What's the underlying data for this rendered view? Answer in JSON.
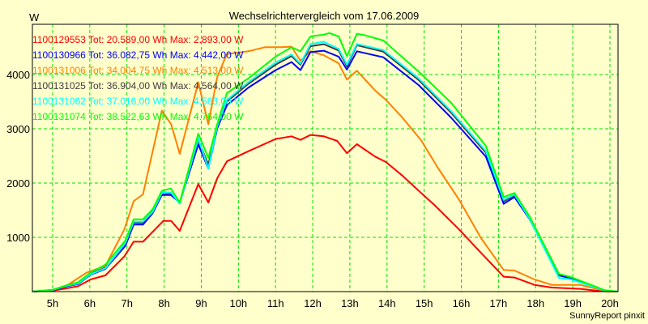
{
  "chart_data": {
    "type": "line",
    "title": "Wechselrichtervergleich vom 17.06.2009",
    "ylabel": "W",
    "xlabel": "",
    "xlim": [
      4.45,
      20.2
    ],
    "ylim": [
      0,
      4925
    ],
    "x_ticks": [
      "5h",
      "6h",
      "7h",
      "8h",
      "9h",
      "10h",
      "11h",
      "12h",
      "13h",
      "14h",
      "15h",
      "16h",
      "17h",
      "18h",
      "19h",
      "20h"
    ],
    "x_tick_values": [
      5,
      6,
      7,
      8,
      9,
      10,
      11,
      12,
      13,
      14,
      15,
      16,
      17,
      18,
      19,
      20
    ],
    "y_ticks": [
      1000,
      2000,
      3000,
      4000
    ],
    "grid": true,
    "legend_placement": "top-left",
    "credit": "SunnyReport pinxit",
    "series": [
      {
        "name": "1100129553",
        "legend": "1100129553 Tot: 20.589,00 Wh Max: 2.893,00 W",
        "color": "#ff0000",
        "points": [
          [
            4.45,
            0
          ],
          [
            5,
            20
          ],
          [
            5.3,
            50
          ],
          [
            5.69,
            100
          ],
          [
            6.02,
            224
          ],
          [
            6.42,
            299
          ],
          [
            6.93,
            647
          ],
          [
            7.18,
            920
          ],
          [
            7.43,
            920
          ],
          [
            7.98,
            1303
          ],
          [
            8.19,
            1303
          ],
          [
            8.42,
            1119
          ],
          [
            8.92,
            1980
          ],
          [
            9.19,
            1642
          ],
          [
            9.43,
            2090
          ],
          [
            9.69,
            2400
          ],
          [
            10.27,
            2587
          ],
          [
            11,
            2811
          ],
          [
            11.43,
            2861
          ],
          [
            11.67,
            2796
          ],
          [
            11.94,
            2886
          ],
          [
            12.3,
            2861
          ],
          [
            12.66,
            2776
          ],
          [
            12.92,
            2550
          ],
          [
            13.19,
            2716
          ],
          [
            13.68,
            2488
          ],
          [
            13.97,
            2388
          ],
          [
            14.41,
            2139
          ],
          [
            14.92,
            1816
          ],
          [
            15.28,
            1592
          ],
          [
            15.94,
            1144
          ],
          [
            16.52,
            721
          ],
          [
            17.14,
            274
          ],
          [
            17.43,
            259
          ],
          [
            17.97,
            124
          ],
          [
            18.44,
            75
          ],
          [
            19.2,
            50
          ],
          [
            19.71,
            10
          ],
          [
            20,
            0
          ],
          [
            20.2,
            0
          ]
        ]
      },
      {
        "name": "1100131006",
        "legend": "1100131006 Tot: 34.004,75 Wh Max: 4.513,00 W",
        "color": "#ff8000",
        "points": [
          [
            4.45,
            0
          ],
          [
            4.7,
            10
          ],
          [
            5,
            30
          ],
          [
            5.4,
            120
          ],
          [
            5.91,
            348
          ],
          [
            6.42,
            473
          ],
          [
            6.93,
            1144
          ],
          [
            7.18,
            1667
          ],
          [
            7.43,
            1791
          ],
          [
            7.94,
            3333
          ],
          [
            8.19,
            3085
          ],
          [
            8.42,
            2537
          ],
          [
            8.92,
            3856
          ],
          [
            9.19,
            3085
          ],
          [
            9.43,
            3955
          ],
          [
            9.69,
            4378
          ],
          [
            10.27,
            4428
          ],
          [
            10.71,
            4503
          ],
          [
            11.14,
            4503
          ],
          [
            11.43,
            4513
          ],
          [
            11.67,
            4254
          ],
          [
            11.94,
            4428
          ],
          [
            12.3,
            4353
          ],
          [
            12.7,
            4204
          ],
          [
            12.92,
            3905
          ],
          [
            13.19,
            4070
          ],
          [
            13.68,
            3706
          ],
          [
            13.97,
            3532
          ],
          [
            14.41,
            3209
          ],
          [
            14.92,
            2786
          ],
          [
            15.36,
            2289
          ],
          [
            15.94,
            1692
          ],
          [
            16.52,
            995
          ],
          [
            17.14,
            398
          ],
          [
            17.43,
            388
          ],
          [
            17.97,
            224
          ],
          [
            18.44,
            124
          ],
          [
            19.2,
            124
          ],
          [
            19.64,
            50
          ],
          [
            20,
            0
          ],
          [
            20.2,
            0
          ]
        ]
      },
      {
        "name": "1100131025",
        "legend": "1100131025 Tot: 36.904,00 Wh Max: 4.564,00 W",
        "color": "#403840",
        "points": [
          [
            4.45,
            0
          ],
          [
            5,
            30
          ],
          [
            5.4,
            110
          ],
          [
            5.69,
            150
          ],
          [
            6.02,
            330
          ],
          [
            6.42,
            440
          ],
          [
            6.96,
            880
          ],
          [
            7.18,
            1270
          ],
          [
            7.43,
            1270
          ],
          [
            7.69,
            1480
          ],
          [
            7.94,
            1810
          ],
          [
            8.18,
            1810
          ],
          [
            8.42,
            1630
          ],
          [
            8.92,
            2790
          ],
          [
            9.19,
            2340
          ],
          [
            9.43,
            3040
          ],
          [
            9.69,
            3500
          ],
          [
            10.27,
            3830
          ],
          [
            11,
            4180
          ],
          [
            11.43,
            4340
          ],
          [
            11.67,
            4180
          ],
          [
            11.94,
            4520
          ],
          [
            12.3,
            4560
          ],
          [
            12.7,
            4440
          ],
          [
            12.92,
            4150
          ],
          [
            13.19,
            4540
          ],
          [
            13.9,
            4420
          ],
          [
            14.85,
            3900
          ],
          [
            15.72,
            3300
          ],
          [
            16.66,
            2560
          ],
          [
            17.14,
            1660
          ],
          [
            17.43,
            1770
          ],
          [
            17.83,
            1370
          ],
          [
            18.63,
            310
          ],
          [
            18.92,
            260
          ],
          [
            19.86,
            20
          ],
          [
            20.2,
            0
          ]
        ]
      },
      {
        "name": "1100130966",
        "legend": "1100130966 Tot: 36.082,75 Wh Max: 4.442,00 W",
        "color": "#0000ff",
        "points": [
          [
            4.45,
            0
          ],
          [
            5,
            25
          ],
          [
            5.4,
            100
          ],
          [
            5.69,
            140
          ],
          [
            6.02,
            310
          ],
          [
            6.42,
            420
          ],
          [
            6.96,
            846
          ],
          [
            7.18,
            1234
          ],
          [
            7.43,
            1234
          ],
          [
            7.69,
            1443
          ],
          [
            7.94,
            1781
          ],
          [
            8.18,
            1781
          ],
          [
            8.42,
            1642
          ],
          [
            8.92,
            2712
          ],
          [
            9.19,
            2264
          ],
          [
            9.43,
            3010
          ],
          [
            9.69,
            3433
          ],
          [
            10.27,
            3760
          ],
          [
            11,
            4080
          ],
          [
            11.43,
            4229
          ],
          [
            11.67,
            4080
          ],
          [
            11.94,
            4413
          ],
          [
            12.3,
            4438
          ],
          [
            12.7,
            4328
          ],
          [
            12.92,
            4090
          ],
          [
            13.19,
            4428
          ],
          [
            13.9,
            4318
          ],
          [
            14.85,
            3806
          ],
          [
            15.72,
            3209
          ],
          [
            16.66,
            2488
          ],
          [
            17.14,
            1617
          ],
          [
            17.43,
            1741
          ],
          [
            17.83,
            1343
          ],
          [
            18.63,
            299
          ],
          [
            18.92,
            249
          ],
          [
            19.86,
            20
          ],
          [
            20.2,
            0
          ]
        ]
      },
      {
        "name": "1100131062",
        "legend": "1100131062 Tot: 37.016,00 Wh Max: 4.563,00 W",
        "color": "#00ffff",
        "points": [
          [
            4.45,
            0
          ],
          [
            5,
            30
          ],
          [
            5.4,
            110
          ],
          [
            5.69,
            150
          ],
          [
            6.02,
            320
          ],
          [
            6.42,
            430
          ],
          [
            6.96,
            900
          ],
          [
            7.18,
            1290
          ],
          [
            7.43,
            1290
          ],
          [
            7.69,
            1470
          ],
          [
            7.94,
            1820
          ],
          [
            8.18,
            1830
          ],
          [
            8.42,
            1620
          ],
          [
            8.92,
            2820
          ],
          [
            9.19,
            2264
          ],
          [
            9.43,
            3050
          ],
          [
            9.69,
            3530
          ],
          [
            10.27,
            3860
          ],
          [
            11,
            4220
          ],
          [
            11.43,
            4370
          ],
          [
            11.67,
            4200
          ],
          [
            11.94,
            4560
          ],
          [
            12.3,
            4604
          ],
          [
            12.7,
            4470
          ],
          [
            12.92,
            4180
          ],
          [
            13.19,
            4563
          ],
          [
            13.9,
            4450
          ],
          [
            14.85,
            3930
          ],
          [
            15.72,
            3330
          ],
          [
            16.66,
            2590
          ],
          [
            17.14,
            1690
          ],
          [
            17.43,
            1790
          ],
          [
            17.83,
            1350
          ],
          [
            18.63,
            250
          ],
          [
            18.92,
            230
          ],
          [
            19.86,
            20
          ],
          [
            20.2,
            0
          ]
        ]
      },
      {
        "name": "1100131074",
        "legend": "1100131074 Tot: 38.522,63 Wh Max: 4.764,00 W",
        "color": "#00ff00",
        "points": [
          [
            4.45,
            0
          ],
          [
            5,
            35
          ],
          [
            5.4,
            120
          ],
          [
            5.69,
            175
          ],
          [
            6.02,
            350
          ],
          [
            6.42,
            497
          ],
          [
            6.96,
            945
          ],
          [
            7.18,
            1333
          ],
          [
            7.43,
            1333
          ],
          [
            7.69,
            1517
          ],
          [
            7.94,
            1855
          ],
          [
            8.18,
            1900
          ],
          [
            8.42,
            1642
          ],
          [
            8.92,
            2910
          ],
          [
            9.19,
            2463
          ],
          [
            9.43,
            3085
          ],
          [
            9.69,
            3657
          ],
          [
            10.27,
            3930
          ],
          [
            11,
            4328
          ],
          [
            11.43,
            4503
          ],
          [
            11.67,
            4428
          ],
          [
            11.94,
            4701
          ],
          [
            12.3,
            4736
          ],
          [
            12.45,
            4764
          ],
          [
            12.7,
            4701
          ],
          [
            12.92,
            4338
          ],
          [
            13.19,
            4751
          ],
          [
            13.39,
            4726
          ],
          [
            13.9,
            4627
          ],
          [
            14.85,
            4055
          ],
          [
            15.72,
            3483
          ],
          [
            16.66,
            2687
          ],
          [
            17.14,
            1741
          ],
          [
            17.43,
            1816
          ],
          [
            17.83,
            1393
          ],
          [
            18.63,
            324
          ],
          [
            18.92,
            274
          ],
          [
            19.86,
            25
          ],
          [
            20.2,
            0
          ]
        ]
      }
    ]
  }
}
